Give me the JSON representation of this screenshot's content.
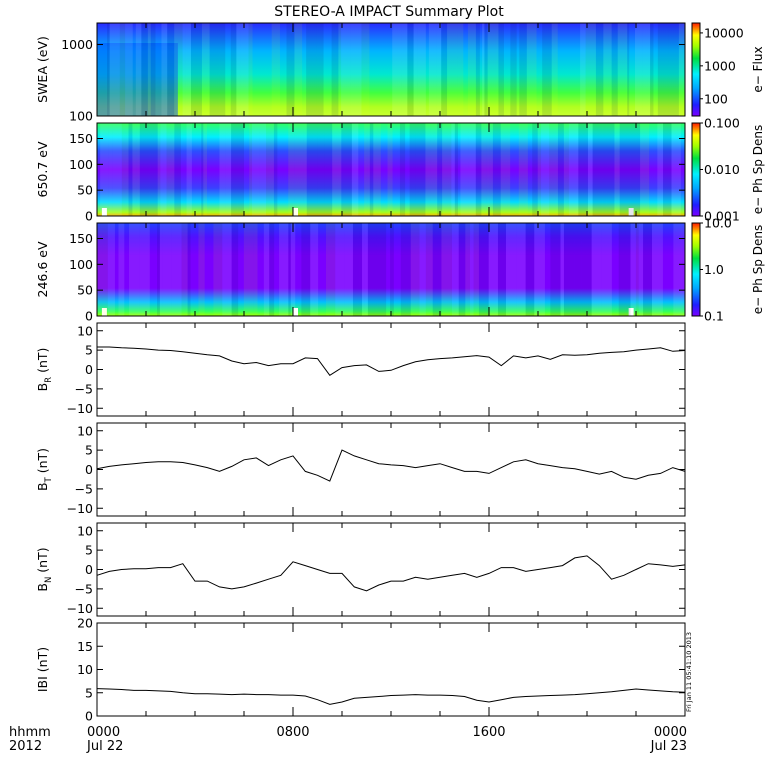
{
  "title": "STEREO-A IMPACT Summary Plot",
  "stamp": "Fri Jan 11 05:41:10 2013",
  "chart_data": [
    {
      "type": "heatmap",
      "ylabel": "SWEA (eV)",
      "yscale": "log",
      "ylim": [
        100,
        2000
      ],
      "yticks": [
        {
          "v": 1000,
          "label": "1000"
        },
        {
          "v": 100,
          "label": "100"
        }
      ],
      "colorbar": {
        "label": "e− Flux",
        "scale": "log",
        "range": [
          30,
          20000
        ],
        "ticks": [
          {
            "v": 10000,
            "label": "10000"
          },
          {
            "v": 1000,
            "label": "1000"
          },
          {
            "v": 100,
            "label": "100"
          }
        ]
      }
    },
    {
      "type": "heatmap",
      "ylabel": "650.7 eV",
      "yscale": "linear",
      "ylim": [
        0,
        180
      ],
      "yticks": [
        {
          "v": 150,
          "label": "150"
        },
        {
          "v": 100,
          "label": "100"
        },
        {
          "v": 50,
          "label": "50"
        },
        {
          "v": 0,
          "label": "0"
        }
      ],
      "colorbar": {
        "label": "e− Ph Sp Dens",
        "scale": "log",
        "range": [
          0.001,
          0.1
        ],
        "ticks": [
          {
            "v": 0.1,
            "label": "0.100"
          },
          {
            "v": 0.01,
            "label": "0.010"
          },
          {
            "v": 0.001,
            "label": "0.001"
          }
        ]
      }
    },
    {
      "type": "heatmap",
      "ylabel": "246.6 eV",
      "yscale": "linear",
      "ylim": [
        0,
        180
      ],
      "yticks": [
        {
          "v": 150,
          "label": "150"
        },
        {
          "v": 100,
          "label": "100"
        },
        {
          "v": 50,
          "label": "50"
        },
        {
          "v": 0,
          "label": "0"
        }
      ],
      "colorbar": {
        "label": "e− Ph Sp Dens",
        "scale": "log",
        "range": [
          0.1,
          10
        ],
        "ticks": [
          {
            "v": 10,
            "label": "10.0"
          },
          {
            "v": 1,
            "label": "1.0"
          },
          {
            "v": 0.1,
            "label": "0.1"
          }
        ]
      }
    },
    {
      "type": "line",
      "ylabel_main": "B",
      "ylabel_sub": "R",
      "ylabel_unit": "(nT)",
      "ylim": [
        -12,
        12
      ],
      "yticks": [
        {
          "v": 10,
          "label": "10"
        },
        {
          "v": 5,
          "label": "5"
        },
        {
          "v": 0,
          "label": "0"
        },
        {
          "v": -5,
          "label": "−5"
        },
        {
          "v": -10,
          "label": "−10"
        }
      ],
      "x": [
        0,
        0.5,
        1,
        1.5,
        2,
        2.5,
        3,
        3.5,
        4,
        4.5,
        5,
        5.5,
        6,
        6.5,
        7,
        7.5,
        8,
        8.5,
        9,
        9.5,
        10,
        10.5,
        11,
        11.5,
        12,
        12.5,
        13,
        13.5,
        14,
        14.5,
        15,
        15.5,
        16,
        16.5,
        17,
        17.5,
        18,
        18.5,
        19,
        19.5,
        20,
        20.5,
        21,
        21.5,
        22,
        22.5,
        23,
        23.5,
        24
      ],
      "y": [
        5.8,
        5.8,
        5.6,
        5.5,
        5.3,
        5.0,
        4.9,
        4.6,
        4.2,
        3.8,
        3.5,
        2.2,
        1.5,
        1.8,
        1.0,
        1.5,
        1.5,
        3.0,
        2.8,
        -1.5,
        0.5,
        1.0,
        1.2,
        -0.5,
        -0.2,
        1.0,
        2.0,
        2.5,
        2.8,
        3.0,
        3.3,
        3.6,
        3.2,
        1.0,
        3.5,
        3.0,
        3.5,
        2.6,
        3.8,
        3.7,
        3.8,
        4.2,
        4.4,
        4.6,
        5.0,
        5.3,
        5.6,
        4.7,
        4.9
      ]
    },
    {
      "type": "line",
      "ylabel_main": "B",
      "ylabel_sub": "T",
      "ylabel_unit": "(nT)",
      "ylim": [
        -12,
        12
      ],
      "yticks": [
        {
          "v": 10,
          "label": "10"
        },
        {
          "v": 5,
          "label": "5"
        },
        {
          "v": 0,
          "label": "0"
        },
        {
          "v": -5,
          "label": "−5"
        },
        {
          "v": -10,
          "label": "−10"
        }
      ],
      "x": [
        0,
        0.5,
        1,
        1.5,
        2,
        2.5,
        3,
        3.5,
        4,
        4.5,
        5,
        5.5,
        6,
        6.5,
        7,
        7.5,
        8,
        8.5,
        9,
        9.5,
        10,
        10.5,
        11,
        11.5,
        12,
        12.5,
        13,
        13.5,
        14,
        14.5,
        15,
        15.5,
        16,
        16.5,
        17,
        17.5,
        18,
        18.5,
        19,
        19.5,
        20,
        20.5,
        21,
        21.5,
        22,
        22.5,
        23,
        23.5,
        24
      ],
      "y": [
        0.2,
        0.8,
        1.2,
        1.5,
        1.8,
        2.0,
        2.0,
        1.8,
        1.2,
        0.5,
        -0.5,
        0.8,
        2.5,
        3.0,
        1.0,
        2.5,
        3.5,
        -0.5,
        -1.5,
        -3.0,
        5.0,
        3.5,
        2.5,
        1.5,
        1.2,
        1.0,
        0.5,
        1.0,
        1.5,
        0.5,
        -0.5,
        -0.5,
        -1.0,
        0.5,
        2.0,
        2.5,
        1.5,
        1.0,
        0.5,
        0.2,
        -0.5,
        -1.2,
        -0.5,
        -2.0,
        -2.5,
        -1.5,
        -1.0,
        0.5,
        -0.5
      ]
    },
    {
      "type": "line",
      "ylabel_main": "B",
      "ylabel_sub": "N",
      "ylabel_unit": "(nT)",
      "ylim": [
        -12,
        12
      ],
      "yticks": [
        {
          "v": 10,
          "label": "10"
        },
        {
          "v": 5,
          "label": "5"
        },
        {
          "v": 0,
          "label": "0"
        },
        {
          "v": -5,
          "label": "−5"
        },
        {
          "v": -10,
          "label": "−10"
        }
      ],
      "x": [
        0,
        0.5,
        1,
        1.5,
        2,
        2.5,
        3,
        3.5,
        4,
        4.5,
        5,
        5.5,
        6,
        6.5,
        7,
        7.5,
        8,
        8.5,
        9,
        9.5,
        10,
        10.5,
        11,
        11.5,
        12,
        12.5,
        13,
        13.5,
        14,
        14.5,
        15,
        15.5,
        16,
        16.5,
        17,
        17.5,
        18,
        18.5,
        19,
        19.5,
        20,
        20.5,
        21,
        21.5,
        22,
        22.5,
        23,
        23.5,
        24
      ],
      "y": [
        -1.5,
        -0.5,
        0.0,
        0.2,
        0.2,
        0.5,
        0.5,
        1.5,
        -3.0,
        -3.0,
        -4.5,
        -5.0,
        -4.5,
        -3.5,
        -2.5,
        -1.5,
        2.0,
        1.0,
        0.0,
        -1.0,
        -1.0,
        -4.5,
        -5.5,
        -4.0,
        -3.0,
        -3.0,
        -2.0,
        -2.5,
        -2.0,
        -1.5,
        -1.0,
        -2.0,
        -1.0,
        0.5,
        0.5,
        -0.5,
        0.0,
        0.5,
        1.0,
        3.0,
        3.5,
        1.0,
        -2.5,
        -1.5,
        0.0,
        1.5,
        1.2,
        0.8,
        1.2
      ]
    },
    {
      "type": "line",
      "ylabel_main": "IBI",
      "ylabel_sub": "",
      "ylabel_unit": "(nT)",
      "ylim": [
        0,
        20
      ],
      "yticks": [
        {
          "v": 20,
          "label": "20"
        },
        {
          "v": 15,
          "label": "15"
        },
        {
          "v": 10,
          "label": "10"
        },
        {
          "v": 5,
          "label": "5"
        },
        {
          "v": 0,
          "label": "0"
        }
      ],
      "x": [
        0,
        0.5,
        1,
        1.5,
        2,
        2.5,
        3,
        3.5,
        4,
        4.5,
        5,
        5.5,
        6,
        6.5,
        7,
        7.5,
        8,
        8.5,
        9,
        9.5,
        10,
        10.5,
        11,
        11.5,
        12,
        12.5,
        13,
        13.5,
        14,
        14.5,
        15,
        15.5,
        16,
        16.5,
        17,
        17.5,
        18,
        18.5,
        19,
        19.5,
        20,
        20.5,
        21,
        21.5,
        22,
        22.5,
        23,
        23.5,
        24
      ],
      "y": [
        5.9,
        5.8,
        5.7,
        5.5,
        5.5,
        5.4,
        5.3,
        5.0,
        4.8,
        4.8,
        4.7,
        4.6,
        4.7,
        4.6,
        4.6,
        4.5,
        4.5,
        4.3,
        3.5,
        2.5,
        3.0,
        3.8,
        4.0,
        4.2,
        4.4,
        4.5,
        4.6,
        4.5,
        4.5,
        4.4,
        4.2,
        3.4,
        3.0,
        3.5,
        4.0,
        4.2,
        4.3,
        4.4,
        4.5,
        4.6,
        4.8,
        5.0,
        5.2,
        5.5,
        5.8,
        5.6,
        5.4,
        5.2,
        5.1
      ]
    }
  ],
  "xaxis": {
    "range_hours": [
      0,
      24
    ],
    "corner_top": "hhmm",
    "corner_bottom": "2012",
    "ticks": [
      {
        "hour": 0,
        "top": "0000",
        "bottom": "Jul 22"
      },
      {
        "hour": 8,
        "top": "0800",
        "bottom": ""
      },
      {
        "hour": 16,
        "top": "1600",
        "bottom": ""
      },
      {
        "hour": 24,
        "top": "0000",
        "bottom": "Jul 23"
      }
    ]
  }
}
